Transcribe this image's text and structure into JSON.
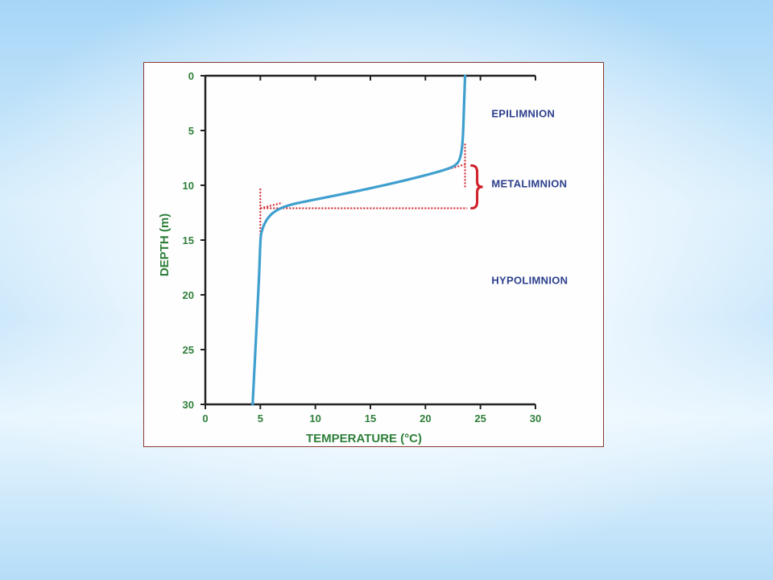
{
  "chart_data": {
    "type": "line",
    "xlabel": "TEMPERATURE (°C)",
    "ylabel": "DEPTH (m)",
    "xlim": [
      0,
      30
    ],
    "ylim": [
      0,
      30
    ],
    "y_inverted": true,
    "x_ticks": [
      "0",
      "5",
      "10",
      "15",
      "20",
      "25",
      "30"
    ],
    "y_ticks": [
      "0",
      "5",
      "10",
      "15",
      "20",
      "25",
      "30"
    ],
    "grid": false,
    "series": [
      {
        "x": [
          23.6,
          23.5,
          23.4,
          23.2,
          22.8,
          21.5,
          18.0,
          14.0,
          10.0,
          7.5,
          6.2,
          5.5,
          5.1,
          5.0,
          4.9,
          4.7,
          4.5,
          4.3
        ],
        "y": [
          0,
          3,
          6,
          7.5,
          8.2,
          8.7,
          9.6,
          10.5,
          11.3,
          11.8,
          12.4,
          13.2,
          14.2,
          15.0,
          18.0,
          22.0,
          26.0,
          30.0
        ]
      }
    ],
    "annotations": [
      {
        "text": "EPILIMNION",
        "x": 26.0,
        "y": 3.8
      },
      {
        "text": "METALIMNION",
        "x": 26.0,
        "y": 10.2
      },
      {
        "text": "HYPOLIMNION",
        "x": 26.0,
        "y": 19.0
      }
    ],
    "tangent_lines": [
      {
        "x": [
          5.0,
          23.8
        ],
        "y": [
          12.1,
          12.1
        ]
      },
      {
        "x": [
          5.0,
          5.0
        ],
        "y": [
          10.3,
          14.8
        ]
      },
      {
        "x": [
          23.6,
          23.6
        ],
        "y": [
          6.2,
          10.3
        ]
      },
      {
        "x": [
          21.8,
          23.6
        ],
        "y": [
          8.6,
          8.1
        ]
      },
      {
        "x": [
          5.0,
          7.0
        ],
        "y": [
          12.1,
          11.6
        ]
      }
    ],
    "bracket": {
      "x": 24.7,
      "y": [
        8.2,
        12.1
      ]
    },
    "colors": {
      "line": "#3f9fcf",
      "tangent": "#d0202a",
      "axis": "#222222",
      "tick_text": "#2e7f3a",
      "layer_text": "#2b3f8c"
    }
  }
}
